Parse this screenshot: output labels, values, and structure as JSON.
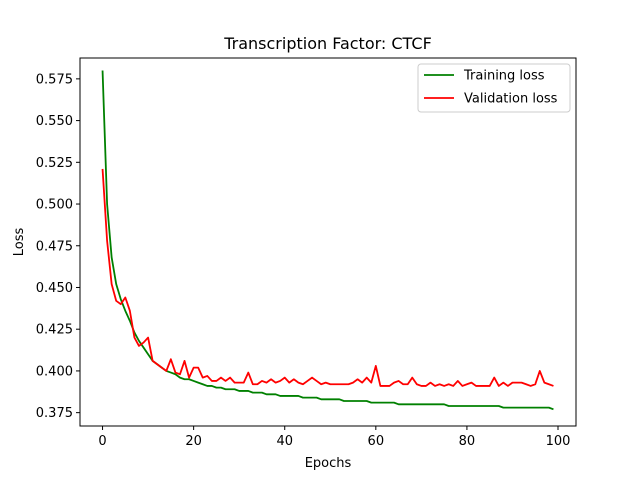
{
  "chart_data": {
    "type": "line",
    "title": "Transcription Factor: CTCF",
    "xlabel": "Epochs",
    "ylabel": "Loss",
    "xlim": [
      -4.95,
      103.95
    ],
    "ylim": [
      0.367,
      0.5875
    ],
    "xticks": [
      0,
      20,
      40,
      60,
      80,
      100
    ],
    "yticks": [
      0.375,
      0.4,
      0.425,
      0.45,
      0.475,
      0.5,
      0.525,
      0.55,
      0.575
    ],
    "ytick_labels": [
      "0.375",
      "0.400",
      "0.425",
      "0.450",
      "0.475",
      "0.500",
      "0.525",
      "0.550",
      "0.575"
    ],
    "grid": false,
    "legend_position": "top-right",
    "series": [
      {
        "name": "Training loss",
        "color": "#008000",
        "values": [
          0.58,
          0.5,
          0.468,
          0.452,
          0.443,
          0.436,
          0.43,
          0.423,
          0.418,
          0.414,
          0.41,
          0.406,
          0.404,
          0.402,
          0.4,
          0.399,
          0.398,
          0.396,
          0.395,
          0.395,
          0.394,
          0.393,
          0.392,
          0.391,
          0.391,
          0.39,
          0.39,
          0.389,
          0.389,
          0.389,
          0.388,
          0.388,
          0.388,
          0.387,
          0.387,
          0.387,
          0.386,
          0.386,
          0.386,
          0.385,
          0.385,
          0.385,
          0.385,
          0.385,
          0.384,
          0.384,
          0.384,
          0.384,
          0.383,
          0.383,
          0.383,
          0.383,
          0.383,
          0.382,
          0.382,
          0.382,
          0.382,
          0.382,
          0.382,
          0.381,
          0.381,
          0.381,
          0.381,
          0.381,
          0.381,
          0.38,
          0.38,
          0.38,
          0.38,
          0.38,
          0.38,
          0.38,
          0.38,
          0.38,
          0.38,
          0.38,
          0.379,
          0.379,
          0.379,
          0.379,
          0.379,
          0.379,
          0.379,
          0.379,
          0.379,
          0.379,
          0.379,
          0.379,
          0.378,
          0.378,
          0.378,
          0.378,
          0.378,
          0.378,
          0.378,
          0.378,
          0.378,
          0.378,
          0.378,
          0.377
        ]
      },
      {
        "name": "Validation loss",
        "color": "#ff0000",
        "values": [
          0.521,
          0.478,
          0.452,
          0.442,
          0.44,
          0.444,
          0.436,
          0.42,
          0.415,
          0.417,
          0.42,
          0.406,
          0.404,
          0.402,
          0.4,
          0.407,
          0.399,
          0.398,
          0.406,
          0.396,
          0.402,
          0.402,
          0.396,
          0.397,
          0.394,
          0.394,
          0.396,
          0.394,
          0.396,
          0.393,
          0.393,
          0.393,
          0.399,
          0.392,
          0.392,
          0.394,
          0.393,
          0.395,
          0.393,
          0.394,
          0.396,
          0.393,
          0.395,
          0.393,
          0.392,
          0.394,
          0.396,
          0.394,
          0.392,
          0.393,
          0.392,
          0.392,
          0.392,
          0.392,
          0.392,
          0.393,
          0.395,
          0.393,
          0.396,
          0.393,
          0.403,
          0.391,
          0.391,
          0.391,
          0.393,
          0.394,
          0.392,
          0.392,
          0.396,
          0.392,
          0.391,
          0.391,
          0.393,
          0.391,
          0.392,
          0.391,
          0.392,
          0.391,
          0.394,
          0.391,
          0.392,
          0.393,
          0.391,
          0.391,
          0.391,
          0.391,
          0.396,
          0.391,
          0.393,
          0.391,
          0.393,
          0.393,
          0.393,
          0.392,
          0.391,
          0.392,
          0.4,
          0.393,
          0.392,
          0.391
        ]
      }
    ]
  }
}
